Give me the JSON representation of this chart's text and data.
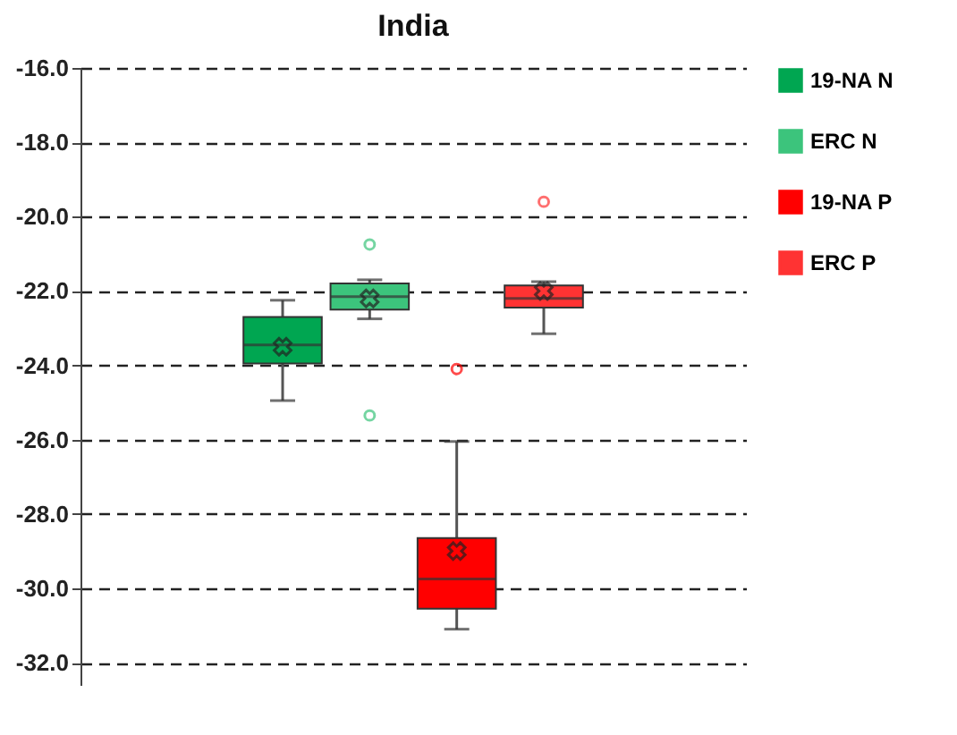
{
  "chart_data": {
    "type": "box",
    "title": "India",
    "categories": [
      null
    ],
    "series": [
      {
        "name": "19-NA N",
        "color": "#00a651",
        "boxes": [
          {
            "low": -24.95,
            "q1": -23.95,
            "median": -23.45,
            "q3": -22.7,
            "high": -22.25,
            "mean": -23.5
          }
        ]
      },
      {
        "name": "ERC N",
        "color": "#3cc47c",
        "boxes": [
          {
            "low": -22.75,
            "q1": -22.5,
            "median": -22.15,
            "q3": -21.8,
            "high": -21.7,
            "mean": -22.2,
            "outliers": [
              -20.75,
              -25.35
            ]
          }
        ]
      },
      {
        "name": "19-NA P",
        "color": "#ff0000",
        "boxes": [
          {
            "low": -31.1,
            "q1": -30.55,
            "median": -29.75,
            "q3": -28.65,
            "high": -26.05,
            "mean": -29.0,
            "outliers": [
              -24.1
            ]
          }
        ]
      },
      {
        "name": "ERC P",
        "color": "#ff3333",
        "boxes": [
          {
            "low": -23.15,
            "q1": -22.45,
            "median": -22.2,
            "q3": -21.85,
            "high": -21.75,
            "mean": -22.0,
            "outliers": [
              -19.6
            ]
          }
        ]
      }
    ],
    "ylim": [
      -32.6,
      -16
    ],
    "yticks": [
      {
        "value": -16,
        "label": "-16.0"
      },
      {
        "value": -18,
        "label": "-18.0"
      },
      {
        "value": -20,
        "label": "-20.0"
      },
      {
        "value": -22,
        "label": "-22.0"
      },
      {
        "value": -24,
        "label": "-24.0"
      },
      {
        "value": -26,
        "label": "-26.0"
      },
      {
        "value": -28,
        "label": "-28.0"
      },
      {
        "value": -30,
        "label": "-30.0"
      },
      {
        "value": -32,
        "label": "-32.0"
      }
    ],
    "grid": "y",
    "legend": "right",
    "marker": "cross",
    "tick_labels": "y"
  }
}
